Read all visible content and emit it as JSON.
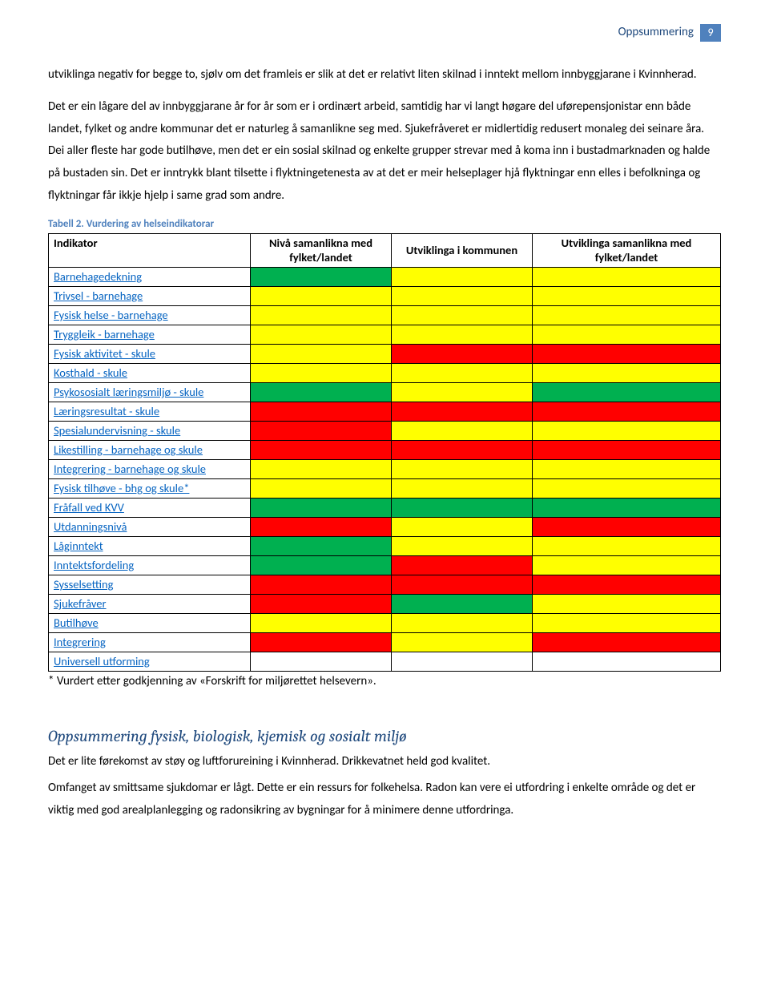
{
  "header": {
    "title": "Oppsummering",
    "page": "9"
  },
  "paragraphs": {
    "p1": "utviklinga negativ for begge to, sjølv om det framleis er slik at det er relativt liten skilnad i inntekt mellom innbyggjarane i Kvinnherad.",
    "p2": "Det er ein lågare del av innbyggjarane år for år som er i ordinært arbeid, samtidig har vi langt høgare del uførepensjonistar enn både landet, fylket og andre kommunar det er naturleg å samanlikne seg med. Sjukefråveret er midlertidig redusert monaleg dei seinare åra. Dei aller fleste har gode butilhøve, men det er ein sosial skilnad og enkelte grupper strevar med å koma inn i bustadmarknaden og halde på bustaden sin. Det er inntrykk blant tilsette i flyktningetenesta av at det er meir helseplager hjå flyktningar enn elles i befolkninga og flyktningar får ikkje hjelp i same grad som andre.",
    "footnote": "* Vurdert etter godkjenning av «Forskrift for miljørettet helsevern».",
    "sectionHeading": "Oppsummering fysisk, biologisk, kjemisk og sosialt miljø",
    "p3": "Det er lite førekomst av støy og luftforureining i Kvinnherad. Drikkevatnet held god kvalitet.",
    "p4": "Omfanget av smittsame sjukdomar er lågt. Dette er ein ressurs for folkehelsa. Radon kan vere ei utfordring i enkelte område og det er viktig med god arealplanlegging og radonsikring av bygningar for å minimere denne utfordringa."
  },
  "table": {
    "caption": "Tabell 2. Vurdering av helseindikatorar",
    "headers": {
      "indicator": "Indikator",
      "colA": "Nivå samanlikna med fylket/landet",
      "colB": "Utviklinga i kommunen",
      "colC": "Utviklinga samanlikna med fylket/landet"
    },
    "rows": [
      {
        "label": "Barnehagedekning",
        "c": [
          "g",
          "y",
          "y"
        ]
      },
      {
        "label": "Trivsel - barnehage",
        "c": [
          "y",
          "y",
          "y"
        ]
      },
      {
        "label": "Fysisk helse - barnehage",
        "c": [
          "y",
          "y",
          "y"
        ]
      },
      {
        "label": "Tryggleik - barnehage",
        "c": [
          "y",
          "y",
          "y"
        ]
      },
      {
        "label": "Fysisk aktivitet - skule",
        "c": [
          "y",
          "r",
          "r"
        ]
      },
      {
        "label": "Kosthald - skule",
        "c": [
          "y",
          "y",
          "y"
        ]
      },
      {
        "label": "Psykososialt læringsmiljø - skule",
        "c": [
          "g",
          "y",
          "g"
        ]
      },
      {
        "label": "Læringsresultat - skule",
        "c": [
          "r",
          "r",
          "r"
        ]
      },
      {
        "label": "Spesialundervisning - skule",
        "c": [
          "r",
          "y",
          "y"
        ]
      },
      {
        "label": "Likestilling - barnehage og skule",
        "c": [
          "r",
          "r",
          "r"
        ]
      },
      {
        "label": "Integrering - barnehage og skule",
        "c": [
          "y",
          "y",
          "y"
        ]
      },
      {
        "label": "Fysisk tilhøve - bhg og skule*",
        "c": [
          "y",
          "y",
          "y"
        ]
      },
      {
        "label": "Fråfall ved KVV",
        "c": [
          "g",
          "g",
          "g"
        ]
      },
      {
        "label": "Utdanningsnivå",
        "c": [
          "r",
          "y",
          "r"
        ]
      },
      {
        "label": "Låginntekt",
        "c": [
          "g",
          "y",
          "y"
        ]
      },
      {
        "label": "Inntektsfordeling",
        "c": [
          "g",
          "r",
          "y"
        ]
      },
      {
        "label": "Sysselsetting",
        "c": [
          "r",
          "r",
          "r"
        ]
      },
      {
        "label": "Sjukefråver",
        "c": [
          "r",
          "g",
          "y"
        ]
      },
      {
        "label": "Butilhøve",
        "c": [
          "y",
          "y",
          "y"
        ]
      },
      {
        "label": "Integrering",
        "c": [
          "r",
          "y",
          "r"
        ]
      },
      {
        "label": "Universell utforming",
        "c": [
          "w",
          "w",
          "w"
        ]
      }
    ]
  },
  "colors": {
    "g": "#00b050",
    "y": "#ffff00",
    "r": "#ff0000",
    "w": "#ffffff",
    "headerBlue": "#4f81bd",
    "textBlue": "#1f497d"
  }
}
